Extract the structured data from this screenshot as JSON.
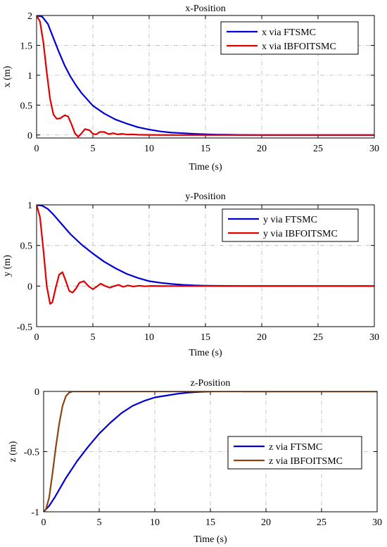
{
  "chart_data": [
    {
      "type": "line",
      "title": "x-Position",
      "xlabel": "Time (s)",
      "ylabel": "x (m)",
      "xlim": [
        0,
        30
      ],
      "ylim": [
        -0.05,
        2
      ],
      "xticks": [
        "0",
        "5",
        "10",
        "15",
        "20",
        "25",
        "30"
      ],
      "yticks": [
        "0",
        "0.5",
        "1",
        "1.5",
        "2"
      ],
      "grid": true,
      "legend_position": "top-right",
      "series": [
        {
          "name": "x via FTSMC",
          "color": "#0000d4",
          "x": [
            0,
            0.5,
            1,
            1.5,
            2,
            2.5,
            3,
            3.5,
            4,
            5,
            6,
            7,
            8,
            9,
            10,
            11,
            12,
            13,
            14,
            15,
            16,
            17,
            18,
            20,
            25,
            30
          ],
          "y": [
            2,
            1.98,
            1.86,
            1.62,
            1.38,
            1.16,
            0.98,
            0.83,
            0.7,
            0.49,
            0.36,
            0.26,
            0.19,
            0.13,
            0.09,
            0.06,
            0.04,
            0.03,
            0.02,
            0.012,
            0.007,
            0.004,
            0.002,
            0,
            0,
            0
          ]
        },
        {
          "name": "x via IBFOITSMC",
          "color": "#e00000",
          "x": [
            0,
            0.3,
            0.6,
            0.9,
            1.2,
            1.5,
            1.8,
            2.1,
            2.5,
            2.8,
            3.1,
            3.4,
            3.7,
            4.0,
            4.3,
            4.7,
            5.0,
            5.3,
            5.6,
            6.0,
            6.4,
            6.8,
            7.2,
            7.6,
            8.0,
            8.5,
            9,
            10,
            12,
            15,
            20,
            30
          ],
          "y": [
            2,
            1.9,
            1.55,
            1.05,
            0.6,
            0.34,
            0.27,
            0.28,
            0.33,
            0.31,
            0.18,
            0.03,
            -0.03,
            0.03,
            0.1,
            0.08,
            0.02,
            0.01,
            0.05,
            0.05,
            0.015,
            0.03,
            0.01,
            0.02,
            0.008,
            0.01,
            0.004,
            0.002,
            0,
            0,
            0,
            0
          ]
        }
      ]
    },
    {
      "type": "line",
      "title": "y-Position",
      "xlabel": "Time (s)",
      "ylabel": "y (m)",
      "xlim": [
        0,
        30
      ],
      "ylim": [
        -0.5,
        1
      ],
      "xticks": [
        "0",
        "5",
        "10",
        "15",
        "20",
        "25",
        "30"
      ],
      "yticks": [
        "-0.5",
        "0",
        "0.5",
        "1"
      ],
      "grid": true,
      "legend_position": "top-right",
      "series": [
        {
          "name": "y via FTSMC",
          "color": "#0000d4",
          "x": [
            0,
            0.5,
            1,
            1.5,
            2,
            3,
            4,
            5,
            6,
            7,
            8,
            9,
            10,
            11,
            12,
            13,
            14,
            15,
            16,
            18,
            30
          ],
          "y": [
            1,
            0.99,
            0.95,
            0.88,
            0.8,
            0.64,
            0.51,
            0.4,
            0.3,
            0.22,
            0.15,
            0.1,
            0.06,
            0.04,
            0.025,
            0.015,
            0.008,
            0.005,
            0.003,
            0.001,
            0
          ]
        },
        {
          "name": "y via IBFOITSMC",
          "color": "#e00000",
          "x": [
            0,
            0.3,
            0.6,
            0.9,
            1.2,
            1.4,
            1.7,
            2.0,
            2.3,
            2.6,
            2.9,
            3.2,
            3.5,
            3.8,
            4.2,
            4.6,
            5.0,
            5.3,
            5.7,
            6.1,
            6.5,
            6.9,
            7.3,
            7.7,
            8.1,
            8.6,
            9.1,
            9.6,
            10.2,
            11,
            12,
            14,
            30
          ],
          "y": [
            1,
            0.85,
            0.45,
            0.0,
            -0.22,
            -0.2,
            -0.02,
            0.14,
            0.17,
            0.06,
            -0.06,
            -0.08,
            -0.03,
            0.04,
            0.06,
            0.0,
            -0.04,
            -0.01,
            0.03,
            0.0,
            -0.02,
            0.0,
            0.015,
            -0.01,
            0.008,
            -0.006,
            0.005,
            -0.003,
            0.002,
            -0.001,
            0,
            0,
            0
          ]
        }
      ]
    },
    {
      "type": "line",
      "title": "z-Position",
      "xlabel": "Time (s)",
      "ylabel": "z (m)",
      "xlim": [
        0,
        30
      ],
      "ylim": [
        -1,
        0
      ],
      "xticks": [
        "0",
        "5",
        "10",
        "15",
        "20",
        "25",
        "30"
      ],
      "yticks": [
        "-1",
        "-0.5",
        "0"
      ],
      "grid": true,
      "legend_position": "bottom-right",
      "series": [
        {
          "name": "z via FTSMC",
          "color": "#0000d4",
          "x": [
            0,
            0.5,
            1,
            1.5,
            2,
            3,
            4,
            5,
            6,
            7,
            8,
            9,
            10,
            11,
            12,
            13,
            14,
            15,
            16,
            17,
            18,
            30
          ],
          "y": [
            -1,
            -0.95,
            -0.88,
            -0.8,
            -0.72,
            -0.58,
            -0.46,
            -0.35,
            -0.26,
            -0.18,
            -0.12,
            -0.08,
            -0.05,
            -0.035,
            -0.02,
            -0.01,
            -0.004,
            0,
            0.003,
            0.003,
            0,
            0
          ]
        },
        {
          "name": "z via IBFOITSMC",
          "color": "#8b4513",
          "x": [
            0,
            0.2,
            0.5,
            0.8,
            1.1,
            1.4,
            1.7,
            2.0,
            2.3,
            2.6,
            3,
            30
          ],
          "y": [
            -1,
            -0.98,
            -0.88,
            -0.68,
            -0.46,
            -0.27,
            -0.12,
            -0.04,
            -0.01,
            0,
            0,
            0
          ]
        }
      ]
    }
  ]
}
